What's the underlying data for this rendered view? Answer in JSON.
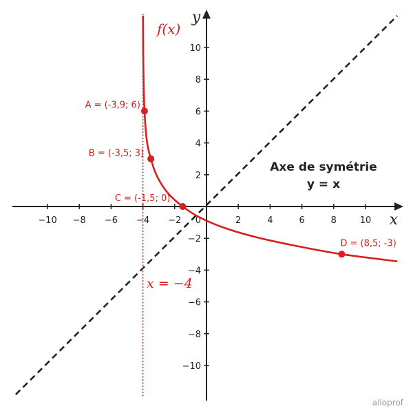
{
  "chart_data": {
    "type": "line",
    "xlim": [
      -12,
      12
    ],
    "ylim": [
      -12,
      12
    ],
    "grid": false,
    "x_ticks": [
      -10,
      -8,
      -6,
      -4,
      -2,
      2,
      4,
      6,
      8,
      10
    ],
    "y_ticks": [
      -10,
      -8,
      -6,
      -4,
      -2,
      2,
      4,
      6,
      8,
      10
    ],
    "x_tick_labels": [
      "−10",
      "−8",
      "−6",
      "−4",
      "−2",
      "2",
      "4",
      "6",
      "8",
      "10"
    ],
    "y_tick_labels": [
      "−10",
      "−8",
      "−6",
      "−4",
      "−2",
      "2",
      "4",
      "6",
      "8",
      "10"
    ],
    "origin_label": "0",
    "x_axis_label": "x",
    "y_axis_label": "y",
    "curve": {
      "label": "f(x)",
      "color": "#d81e1e",
      "vertical_asymptote": -4,
      "points": [
        {
          "x": -3.995,
          "y": 12
        },
        {
          "x": -3.98,
          "y": 9.6
        },
        {
          "x": -3.95,
          "y": 7.7
        },
        {
          "x": -3.9,
          "y": 6
        },
        {
          "x": -3.8,
          "y": 4.6
        },
        {
          "x": -3.7,
          "y": 3.8
        },
        {
          "x": -3.5,
          "y": 3
        },
        {
          "x": -3.2,
          "y": 2.1
        },
        {
          "x": -2.8,
          "y": 1.35
        },
        {
          "x": -2.3,
          "y": 0.7
        },
        {
          "x": -1.5,
          "y": 0
        },
        {
          "x": -0.5,
          "y": -0.65
        },
        {
          "x": 1,
          "y": -1.3
        },
        {
          "x": 3,
          "y": -1.9
        },
        {
          "x": 5.5,
          "y": -2.45
        },
        {
          "x": 8.5,
          "y": -3
        },
        {
          "x": 12,
          "y": -3.45
        }
      ]
    },
    "asymptote": {
      "x": -4,
      "label": "x = −4",
      "color": "#d81e1e"
    },
    "symmetry_axis": {
      "line": [
        [
          -12,
          -12
        ],
        [
          12,
          12
        ]
      ],
      "label_line1": "Axe de symétrie",
      "label_line2": "y = x",
      "color": "#222222"
    },
    "labeled_points": [
      {
        "name": "A",
        "x": -3.9,
        "y": 6,
        "label": "A = (-3,9; 6)"
      },
      {
        "name": "B",
        "x": -3.5,
        "y": 3,
        "label": "B = (-3,5; 3)"
      },
      {
        "name": "C",
        "x": -1.5,
        "y": 0,
        "label": "C = (-1,5; 0)"
      },
      {
        "name": "D",
        "x": 8.5,
        "y": -3,
        "label": "D = (8,5; -3)"
      }
    ]
  },
  "logo_text": "alloprof"
}
